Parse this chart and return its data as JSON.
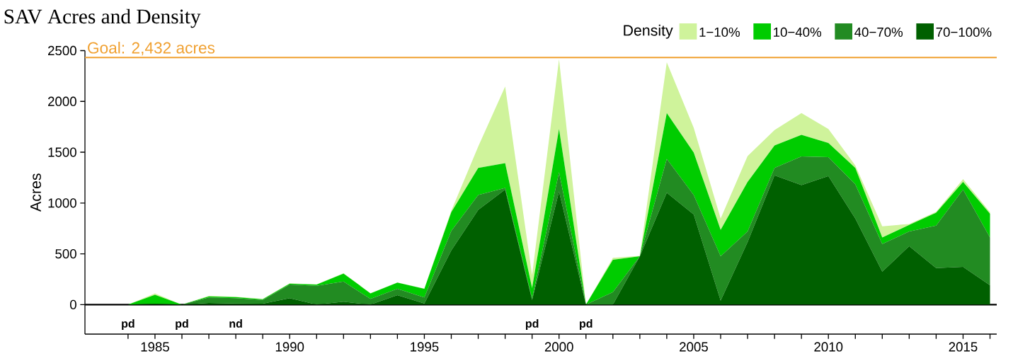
{
  "chart_data": {
    "type": "area",
    "title": "SAV Acres and Density",
    "ylabel": "Acres",
    "legend_title": "Density",
    "legend": "top right",
    "stacked": true,
    "x": [
      1984,
      1985,
      1986,
      1987,
      1988,
      1989,
      1990,
      1991,
      1992,
      1993,
      1994,
      1995,
      1996,
      1997,
      1998,
      1999,
      2000,
      2001,
      2002,
      2003,
      2004,
      2005,
      2006,
      2007,
      2008,
      2009,
      2010,
      2011,
      2012,
      2013,
      2014,
      2015,
      2016
    ],
    "series": [
      {
        "name": "70−100%",
        "color": "#006000",
        "values": [
          0,
          10,
          0,
          16,
          12,
          9,
          63,
          0,
          28,
          0,
          93,
          12,
          534,
          933,
          1133,
          46,
          1114,
          0,
          0,
          476,
          1102,
          887,
          39,
          615,
          1272,
          1177,
          1265,
          847,
          325,
          576,
          360,
          371,
          190
        ]
      },
      {
        "name": "40−70%",
        "color": "#228b22",
        "values": [
          0,
          0,
          0,
          54,
          51,
          37,
          134,
          186,
          199,
          56,
          62,
          58,
          192,
          146,
          16,
          12,
          190,
          0,
          123,
          0,
          332,
          192,
          437,
          105,
          74,
          281,
          186,
          337,
          272,
          144,
          418,
          762,
          471
        ]
      },
      {
        "name": "10−40%",
        "color": "#00cc00",
        "values": [
          0,
          87,
          0,
          11,
          11,
          7,
          10,
          11,
          79,
          55,
          61,
          85,
          184,
          267,
          244,
          104,
          425,
          0,
          318,
          0,
          451,
          418,
          260,
          487,
          221,
          213,
          139,
          162,
          64,
          65,
          127,
          74,
          233
        ]
      },
      {
        "name": "1−10%",
        "color": "#cff39b",
        "values": [
          0,
          14,
          0,
          5,
          3,
          3,
          2,
          2,
          3,
          2,
          2,
          2,
          14,
          209,
          754,
          128,
          685,
          0,
          19,
          4,
          499,
          244,
          111,
          255,
          151,
          214,
          139,
          23,
          110,
          9,
          9,
          28,
          16
        ]
      }
    ],
    "xlim": [
      1982.4,
      2016.25
    ],
    "ylim": [
      -290,
      2500
    ],
    "xticks": [
      {
        "value": 1984,
        "label": null
      },
      1985,
      {
        "value": 1986,
        "label": null
      },
      {
        "value": 1987,
        "label": null
      },
      {
        "value": 1988,
        "label": null
      },
      {
        "value": 1989,
        "label": null
      },
      1990,
      {
        "value": 1991,
        "label": null
      },
      {
        "value": 1992,
        "label": null
      },
      {
        "value": 1993,
        "label": null
      },
      {
        "value": 1994,
        "label": null
      },
      1995,
      {
        "value": 1996,
        "label": null
      },
      {
        "value": 1997,
        "label": null
      },
      {
        "value": 1998,
        "label": null
      },
      {
        "value": 1999,
        "label": null
      },
      2000,
      {
        "value": 2001,
        "label": null
      },
      {
        "value": 2002,
        "label": null
      },
      {
        "value": 2003,
        "label": null
      },
      {
        "value": 2004,
        "label": null
      },
      2005,
      {
        "value": 2006,
        "label": null
      },
      {
        "value": 2007,
        "label": null
      },
      {
        "value": 2008,
        "label": null
      },
      {
        "value": 2009,
        "label": null
      },
      2010,
      {
        "value": 2011,
        "label": null
      },
      {
        "value": 2012,
        "label": null
      },
      {
        "value": 2013,
        "label": null
      },
      {
        "value": 2014,
        "label": null
      },
      2015,
      {
        "value": 2016,
        "label": null
      }
    ],
    "yticks": [
      0,
      500,
      1000,
      1500,
      2000,
      2500
    ],
    "ref_lines": [
      {
        "axis": "y",
        "value": 2432,
        "label": "Goal: 2,432 acres",
        "color": "#f0a030",
        "line_style": "solid"
      },
      {
        "axis": "y",
        "value": 0,
        "color": "#000000",
        "line_style": "solid"
      }
    ],
    "annotations": [
      {
        "text": "pd",
        "x": 1984,
        "y": 0
      },
      {
        "text": "pd",
        "x": 1986,
        "y": 0
      },
      {
        "text": "nd",
        "x": 1988,
        "y": 0
      },
      {
        "text": "pd",
        "x": 1999,
        "y": 0
      },
      {
        "text": "pd",
        "x": 2001,
        "y": 0
      }
    ]
  }
}
